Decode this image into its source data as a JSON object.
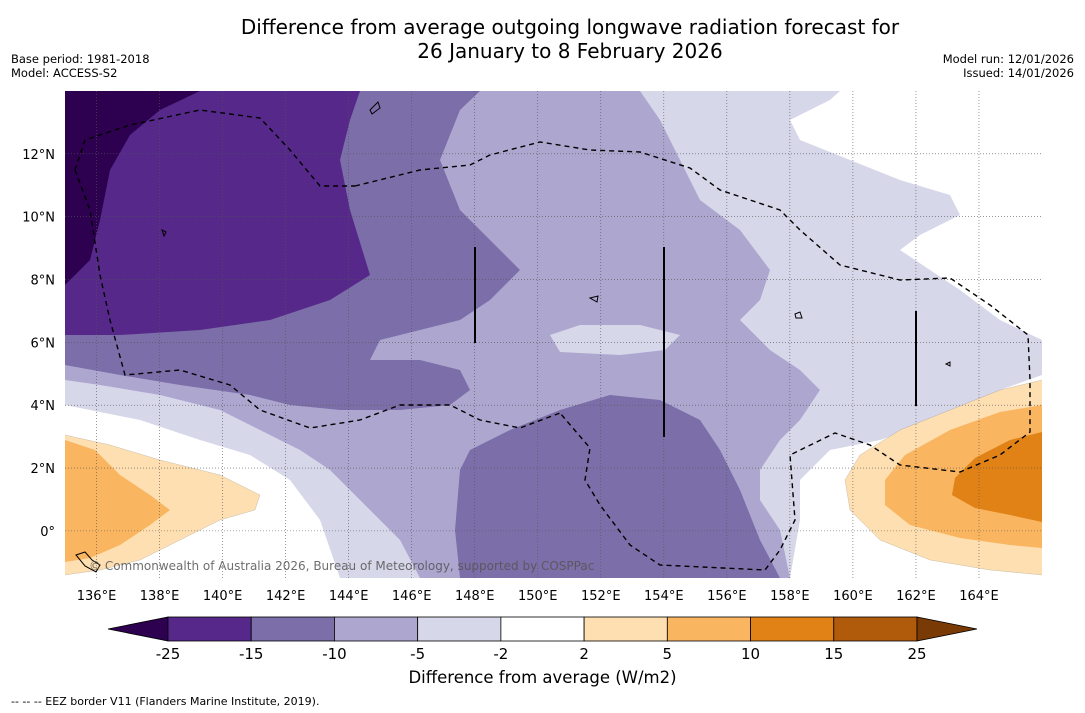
{
  "header": {
    "title_line1": "Difference from average outgoing longwave radiation forecast for",
    "title_line2": "26 January to 8 February 2026",
    "base_period": "Base period: 1981-2018",
    "model": "Model: ACCESS-S2",
    "model_run": "Model run: 12/01/2026",
    "issued": "Issued: 14/01/2026"
  },
  "map": {
    "lon_range": [
      135,
      166
    ],
    "lat_range": [
      -1.5,
      14
    ],
    "lon_ticks": [
      "136°E",
      "138°E",
      "140°E",
      "142°E",
      "144°E",
      "146°E",
      "148°E",
      "150°E",
      "152°E",
      "154°E",
      "156°E",
      "158°E",
      "160°E",
      "162°E",
      "164°E"
    ],
    "lat_ticks": [
      "0°",
      "2°N",
      "4°N",
      "6°N",
      "8°N",
      "10°N",
      "12°N"
    ],
    "copyright": "© Commonwealth of Australia 2026, Bureau of Meteorology, supported by COSPPac"
  },
  "colorbar": {
    "ticks": [
      "-25",
      "-15",
      "-10",
      "-5",
      "-2",
      "2",
      "5",
      "10",
      "15",
      "25"
    ],
    "colors": {
      "under": "#2d0050",
      "c1": "#55288a",
      "c2": "#7c6ea8",
      "c3": "#ada7d0",
      "c4": "#d7d7ea",
      "c5": "#ffffff",
      "c6": "#fddfb1",
      "c7": "#fab560",
      "c8": "#e08216",
      "c9": "#b05a0c",
      "over": "#7a3a05"
    },
    "label": "Difference from average (W/m2)"
  },
  "footnote": "--  --  -- EEZ border V11 (Flanders Marine Institute, 2019)."
}
